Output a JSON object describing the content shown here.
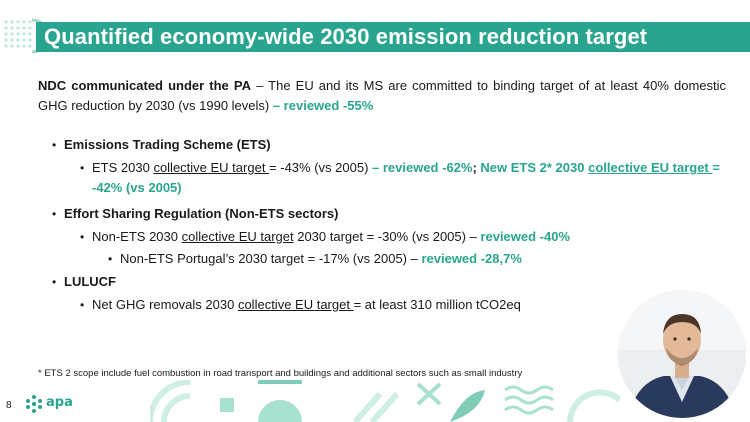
{
  "slide": {
    "title": "Quantified economy-wide 2030 emission reduction target",
    "page_number": "8",
    "logo_text": "apa",
    "footnote": "* ETS 2 scope include fuel combustion in road transport and buildings and additional sectors such as small industry"
  },
  "intro": {
    "bold": "NDC communicated under the PA",
    "text": " – The EU and its MS are committed to binding target of at least 40% domestic GHG reduction by 2030 (vs 1990 levels) ",
    "highlight": "– reviewed -55%"
  },
  "ets": {
    "heading": "Emissions Trading Scheme (ETS)",
    "t1": "ETS 2030 ",
    "t1_u": "collective EU target ",
    "t2": "= -43% (vs 2005) ",
    "h1": "– reviewed -62%",
    "sep": "; ",
    "h2": "New ETS 2* 2030 ",
    "h2_u": "collective EU target ",
    "h3": "= -42% (vs 2005)"
  },
  "esr": {
    "heading": "Effort Sharing Regulation (Non-ETS sectors)",
    "t1": "Non-ETS 2030 ",
    "t1_u": "collective EU target",
    "t2": " 2030 target = -30% (vs 2005) – ",
    "h1": "reviewed -40%",
    "pt_text": "Non-ETS Portugal’s 2030 target = -17% (vs 2005) – ",
    "pt_h": "reviewed -28,7%"
  },
  "lulucf": {
    "heading": "LULUCF",
    "t1": "Net GHG removals 2030 ",
    "t1_u": "collective EU target ",
    "t2": "= at least 310 million tCO2eq"
  },
  "colors": {
    "accent": "#29a58f",
    "text": "#1a1a1a",
    "decor_light": "#cfeee6"
  }
}
